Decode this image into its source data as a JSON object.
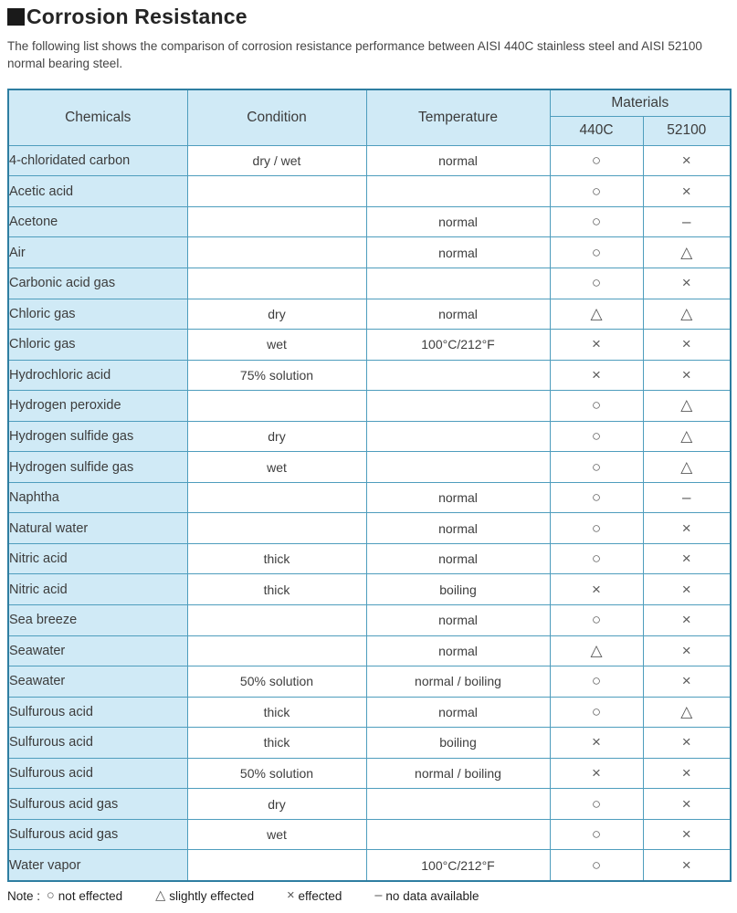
{
  "page": {
    "title": "Corrosion Resistance",
    "subtitle": "The following list shows the comparison of corrosion resistance performance between AISI 440C stainless steel and AISI 52100 normal bearing steel."
  },
  "colors": {
    "cell_blue": "#d0eaf6",
    "border_inner": "#4e9dbd",
    "border_outer": "#2e7ea1",
    "text": "#3c3c3c",
    "symbol": "#5a5a5a"
  },
  "table": {
    "headers": {
      "chemicals": "Chemicals",
      "condition": "Condition",
      "temperature": "Temperature",
      "materials": "Materials",
      "mat_440c": "440C",
      "mat_52100": "52100"
    },
    "rows": [
      {
        "chemical": "4-chloridated carbon",
        "condition": "dry / wet",
        "temperature": "normal",
        "m440c": "○",
        "m52100": "×"
      },
      {
        "chemical": "Acetic acid",
        "condition": "",
        "temperature": "",
        "m440c": "○",
        "m52100": "×"
      },
      {
        "chemical": "Acetone",
        "condition": "",
        "temperature": "normal",
        "m440c": "○",
        "m52100": "–"
      },
      {
        "chemical": "Air",
        "condition": "",
        "temperature": "normal",
        "m440c": "○",
        "m52100": "△"
      },
      {
        "chemical": "Carbonic acid gas",
        "condition": "",
        "temperature": "",
        "m440c": "○",
        "m52100": "×"
      },
      {
        "chemical": "Chloric gas",
        "condition": "dry",
        "temperature": "normal",
        "m440c": "△",
        "m52100": "△"
      },
      {
        "chemical": "Chloric gas",
        "condition": "wet",
        "temperature": "100°C/212°F",
        "m440c": "×",
        "m52100": "×"
      },
      {
        "chemical": "Hydrochloric acid",
        "condition": "75% solution",
        "temperature": "",
        "m440c": "×",
        "m52100": "×"
      },
      {
        "chemical": "Hydrogen peroxide",
        "condition": "",
        "temperature": "",
        "m440c": "○",
        "m52100": "△"
      },
      {
        "chemical": "Hydrogen sulfide gas",
        "condition": "dry",
        "temperature": "",
        "m440c": "○",
        "m52100": "△"
      },
      {
        "chemical": "Hydrogen sulfide gas",
        "condition": "wet",
        "temperature": "",
        "m440c": "○",
        "m52100": "△"
      },
      {
        "chemical": "Naphtha",
        "condition": "",
        "temperature": "normal",
        "m440c": "○",
        "m52100": "–"
      },
      {
        "chemical": "Natural water",
        "condition": "",
        "temperature": "normal",
        "m440c": "○",
        "m52100": "×"
      },
      {
        "chemical": "Nitric acid",
        "condition": "thick",
        "temperature": "normal",
        "m440c": "○",
        "m52100": "×"
      },
      {
        "chemical": "Nitric acid",
        "condition": "thick",
        "temperature": "boiling",
        "m440c": "×",
        "m52100": "×"
      },
      {
        "chemical": "Sea breeze",
        "condition": "",
        "temperature": "normal",
        "m440c": "○",
        "m52100": "×"
      },
      {
        "chemical": "Seawater",
        "condition": "",
        "temperature": "normal",
        "m440c": "△",
        "m52100": "×"
      },
      {
        "chemical": "Seawater",
        "condition": "50% solution",
        "temperature": "normal / boiling",
        "m440c": "○",
        "m52100": "×"
      },
      {
        "chemical": "Sulfurous acid",
        "condition": "thick",
        "temperature": "normal",
        "m440c": "○",
        "m52100": "△"
      },
      {
        "chemical": "Sulfurous acid",
        "condition": "thick",
        "temperature": "boiling",
        "m440c": "×",
        "m52100": "×"
      },
      {
        "chemical": "Sulfurous acid",
        "condition": "50% solution",
        "temperature": "normal / boiling",
        "m440c": "×",
        "m52100": "×"
      },
      {
        "chemical": "Sulfurous acid gas",
        "condition": "dry",
        "temperature": "",
        "m440c": "○",
        "m52100": "×"
      },
      {
        "chemical": "Sulfurous acid gas",
        "condition": "wet",
        "temperature": "",
        "m440c": "○",
        "m52100": "×"
      },
      {
        "chemical": "Water vapor",
        "condition": "",
        "temperature": "100°C/212°F",
        "m440c": "○",
        "m52100": "×"
      }
    ],
    "legend_meaning": {
      "○": "not effected",
      "△": "slightly effected",
      "×": "effected",
      "–": "no data available"
    }
  },
  "note": {
    "label": "Note :",
    "items": [
      {
        "symbol": "○",
        "text": "not effected"
      },
      {
        "symbol": "△",
        "text": "slightly effected"
      },
      {
        "symbol": "×",
        "text": "effected"
      },
      {
        "symbol": "–",
        "text": "no data available"
      }
    ]
  }
}
